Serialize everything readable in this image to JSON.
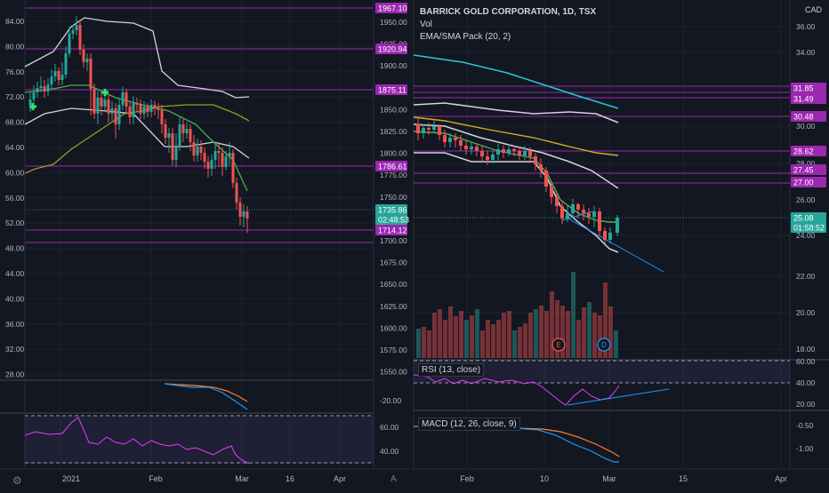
{
  "left_chart": {
    "y_ticks": [
      "84.00",
      "80.00",
      "76.00",
      "72.00",
      "68.00",
      "64.00",
      "60.00",
      "56.00",
      "52.00",
      "48.00",
      "44.00",
      "40.00",
      "36.00",
      "32.00",
      "28.00"
    ],
    "right_ticks": [
      "1950.00",
      "1925.00",
      "1900.00",
      "1875.00",
      "1850.00",
      "1825.00",
      "1800.00",
      "1775.00",
      "1750.00",
      "1725.00",
      "1700.00",
      "1675.00",
      "1650.00",
      "1625.00",
      "1600.00",
      "1575.00",
      "1550.00"
    ],
    "macd_tick": "-20.00",
    "rsi_ticks": [
      "60.00",
      "40.00"
    ],
    "x_ticks": [
      "2021",
      "Feb",
      "Mar",
      "16",
      "Apr"
    ],
    "price_tags": [
      {
        "text": "1967.10",
        "color": "#9c27b0"
      },
      {
        "text": "1920.94",
        "color": "#9c27b0"
      },
      {
        "text": "1875.11",
        "color": "#9c27b0"
      },
      {
        "text": "1786.61",
        "color": "#9c27b0"
      },
      {
        "text": "1735.86",
        "color": "#26a69a"
      },
      {
        "text": "02:48:53",
        "color": "#26a69a"
      },
      {
        "text": "1714.12",
        "color": "#9c27b0"
      }
    ]
  },
  "right_chart": {
    "title": "BARRICK GOLD CORPORATION, 1D, TSX",
    "vol_label": "Vol",
    "ema_label": "EMA/SMA Pack (20, 2)",
    "currency": "CAD",
    "y_ticks": [
      "36.00",
      "34.00",
      "32.00",
      "30.00",
      "28.00",
      "26.00",
      "24.00",
      "22.00",
      "20.00",
      "18.00"
    ],
    "rsi_label": "RSI (13, close)",
    "rsi_ticks": [
      "60.00",
      "40.00",
      "20.00"
    ],
    "macd_label": "MACD (12, 26, close, 9)",
    "macd_ticks": [
      "-0.50",
      "-1.00"
    ],
    "x_ticks": [
      "Feb",
      "10",
      "Mar",
      "15",
      "Apr"
    ],
    "price_tags": [
      {
        "text": "31.85",
        "color": "#9c27b0"
      },
      {
        "text": "31.49",
        "color": "#9c27b0"
      },
      {
        "text": "30.48",
        "color": "#9c27b0"
      },
      {
        "text": "28.62",
        "color": "#9c27b0"
      },
      {
        "text": "27.45",
        "color": "#9c27b0"
      },
      {
        "text": "27.00",
        "color": "#9c27b0"
      },
      {
        "text": "25.08",
        "color": "#26a69a"
      },
      {
        "text": "01:58:52",
        "color": "#26a69a"
      }
    ],
    "events": [
      "E",
      "D"
    ]
  },
  "colors": {
    "bg": "#131722",
    "up": "#26a69a",
    "down": "#ef5350",
    "level": "#9c27b0",
    "grid": "#1e222d"
  }
}
